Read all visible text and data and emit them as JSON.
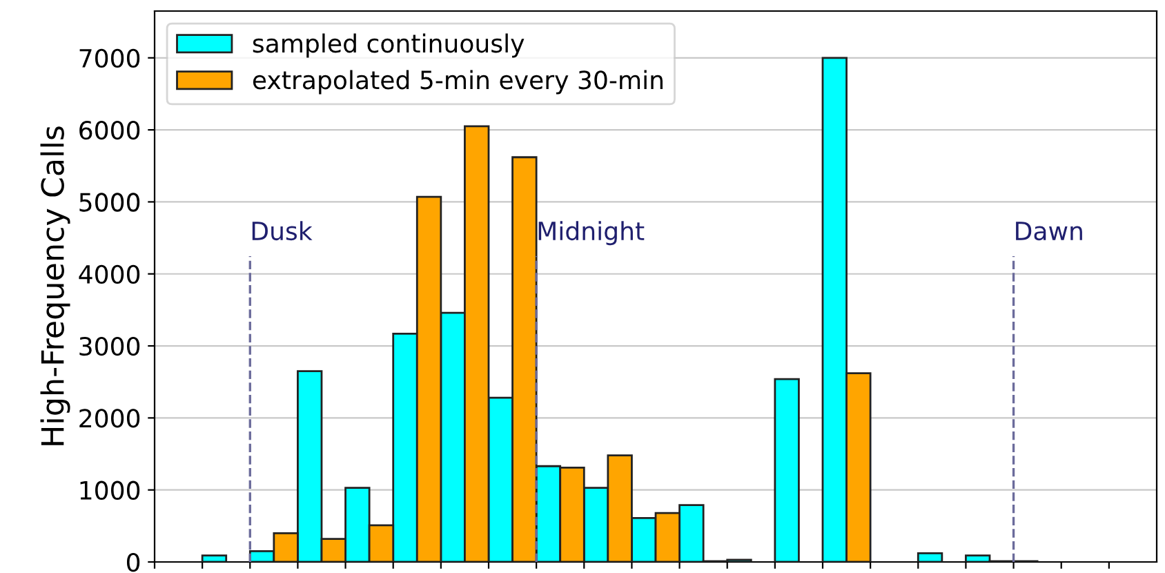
{
  "chart_data": {
    "type": "bar",
    "ylabel": "High-Frequency Calls",
    "categories": [
      null,
      null,
      null,
      null,
      null,
      null,
      null,
      null,
      null,
      null,
      null,
      null,
      null,
      null,
      null,
      null,
      null,
      null,
      null,
      null,
      null,
      null,
      null,
      null,
      null,
      null,
      null,
      null,
      null,
      null,
      null,
      null,
      null,
      null,
      null,
      null,
      null,
      null,
      null,
      null,
      null,
      null
    ],
    "series": [
      {
        "name": "sampled continuously",
        "color": "#00ffff",
        "values": [
          null,
          null,
          90,
          null,
          150,
          null,
          2650,
          null,
          1030,
          null,
          3170,
          null,
          3460,
          null,
          2280,
          null,
          1330,
          null,
          1030,
          null,
          610,
          null,
          790,
          null,
          30,
          null,
          2540,
          null,
          7000,
          null,
          null,
          null,
          120,
          null,
          90,
          10,
          10,
          null,
          null,
          null,
          null,
          null
        ]
      },
      {
        "name": "extrapolated 5-min every 30-min",
        "color": "#ffa500",
        "values": [
          null,
          null,
          null,
          null,
          null,
          400,
          null,
          320,
          null,
          510,
          null,
          5070,
          null,
          6050,
          null,
          5620,
          null,
          1310,
          null,
          1480,
          null,
          680,
          null,
          10,
          null,
          null,
          null,
          null,
          null,
          2620,
          null,
          null,
          null,
          null,
          null,
          null,
          null,
          null,
          null,
          null,
          null,
          null
        ]
      }
    ],
    "ylim": [
      0,
      7650
    ],
    "yticks": [
      0,
      1000,
      2000,
      3000,
      4000,
      5000,
      6000,
      7000
    ],
    "grid": "y",
    "legend": "top left",
    "annotations": [
      "Dusk",
      "Midnight",
      "Dawn"
    ]
  }
}
